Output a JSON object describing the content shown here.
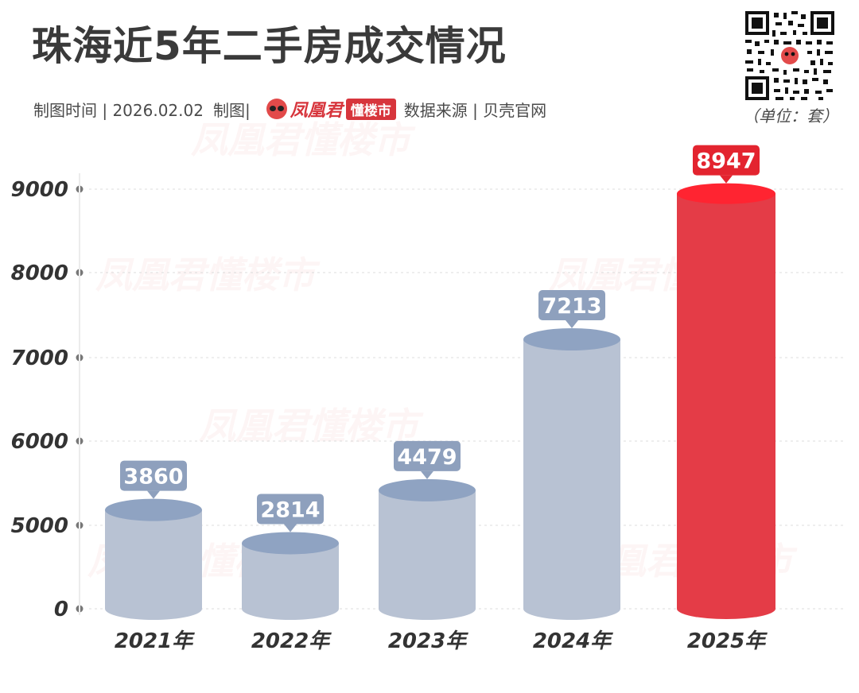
{
  "header": {
    "title": "珠海近5年二手房成交情况",
    "made_time": "制图时间 | 2026.02.02",
    "made_by": "制图|",
    "brand_name": "凤凰君",
    "brand_tag": "懂楼市",
    "source": "数据来源 | 贝壳官网",
    "unit": "（单位：套）"
  },
  "watermark": {
    "text": "凤凰君懂楼市"
  },
  "colors": {
    "bar_default": "#b8c2d3",
    "bar_top": "#8fa3c2",
    "label_default": "#8ea0bd",
    "bar_highlight": "#e43c47",
    "bar_highlight_top": "#ff2431",
    "label_highlight": "#e3242f",
    "axis_text": "#333333",
    "grid": "#dcdcdc"
  },
  "chart_data": {
    "type": "bar",
    "title": "珠海近5年二手房成交情况",
    "xlabel": "",
    "ylabel": "",
    "categories": [
      "2021年",
      "2022年",
      "2023年",
      "2024年",
      "2025年"
    ],
    "values": [
      3860,
      2814,
      4479,
      7213,
      8947
    ],
    "data_labels": [
      "3860",
      "2814",
      "4479",
      "7213",
      "8947"
    ],
    "highlight_index": 4,
    "y_ticks": [
      0,
      5000,
      6000,
      7000,
      8000,
      9000
    ],
    "y_tick_labels": [
      "0",
      "5000",
      "6000",
      "7000",
      "8000",
      "9000"
    ],
    "axis_note": "y-axis is broken between 0 and 5000; bars drawn on a non-linear pictorial scale",
    "grid": true,
    "legend": "none"
  }
}
